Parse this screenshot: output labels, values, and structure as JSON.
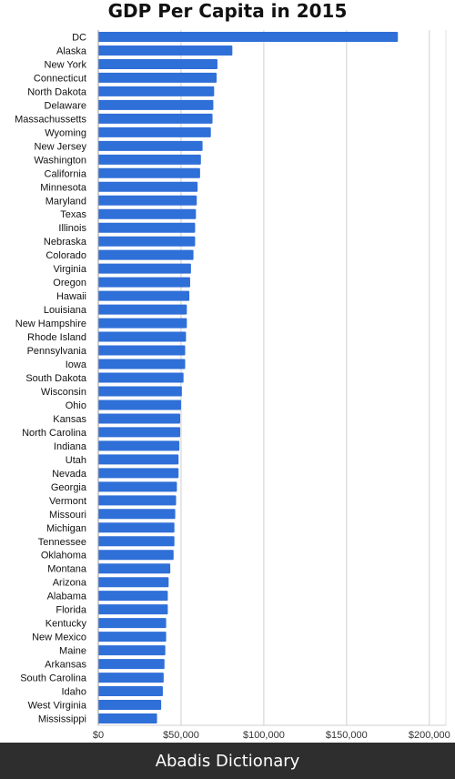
{
  "chart_data": {
    "type": "bar",
    "orientation": "horizontal",
    "title": "GDP Per Capita in 2015",
    "xlabel": "",
    "ylabel": "",
    "xlim": [
      0,
      210000
    ],
    "ticks": [
      {
        "value": 0,
        "label": "$0"
      },
      {
        "value": 50000,
        "label": "$50,000"
      },
      {
        "value": 100000,
        "label": "$100,000"
      },
      {
        "value": 150000,
        "label": "$150,000"
      },
      {
        "value": 200000,
        "label": "$200,000"
      }
    ],
    "grid": true,
    "bar_color": "#2f6fd8",
    "categories": [
      "DC",
      "Alaska",
      "New York",
      "Connecticut",
      "North Dakota",
      "Delaware",
      "Massachussetts",
      "Wyoming",
      "New Jersey",
      "Washington",
      "California",
      "Minnesota",
      "Maryland",
      "Texas",
      "Illinois",
      "Nebraska",
      "Colorado",
      "Virginia",
      "Oregon",
      "Hawaii",
      "Louisiana",
      "New Hampshire",
      "Rhode Island",
      "Pennsylvania",
      "Iowa",
      "South Dakota",
      "Wisconsin",
      "Ohio",
      "Kansas",
      "North Carolina",
      "Indiana",
      "Utah",
      "Nevada",
      "Georgia",
      "Vermont",
      "Missouri",
      "Michigan",
      "Tennessee",
      "Oklahoma",
      "Montana",
      "Arizona",
      "Alabama",
      "Florida",
      "Kentucky",
      "New Mexico",
      "Maine",
      "Arkansas",
      "South Carolina",
      "Idaho",
      "West Virginia",
      "Mississippi"
    ],
    "values": [
      181000,
      81000,
      72000,
      71500,
      70000,
      69500,
      69000,
      68000,
      63000,
      62000,
      61500,
      60000,
      59500,
      59000,
      58500,
      58500,
      57500,
      56000,
      55500,
      55000,
      53500,
      53500,
      53000,
      52500,
      52500,
      51500,
      50500,
      50000,
      49500,
      49500,
      49000,
      48500,
      48500,
      47500,
      47000,
      46500,
      46000,
      46000,
      45500,
      43500,
      42500,
      42000,
      42000,
      41000,
      41000,
      40500,
      40000,
      39500,
      39000,
      38000,
      35500
    ]
  },
  "footer": {
    "text": "Abadis Dictionary"
  }
}
